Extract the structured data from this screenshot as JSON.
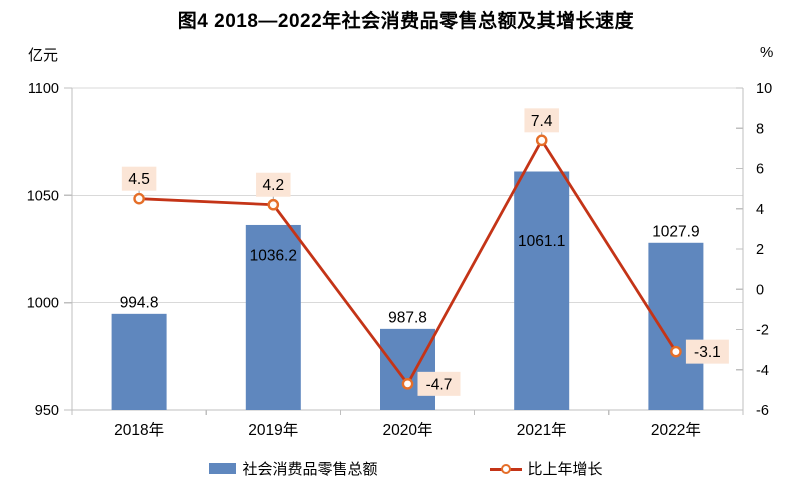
{
  "title": "图4  2018—2022年社会消费品零售总额及其增长速度",
  "left_axis_unit": "亿元",
  "right_axis_unit": "%",
  "legend": {
    "bar_label": "社会消费品零售总额",
    "line_label": "比上年增长"
  },
  "colors": {
    "bar": "#5f87be",
    "line": "#c43417",
    "marker_ring": "#e56e28",
    "marker_fill": "#fffcfa",
    "label_bg": "#fbe5d6",
    "axis": "#bfbfbf",
    "grid": "#d9d9d9",
    "leader": "#a6a6a6",
    "text": "#000000"
  },
  "chart_data": {
    "type": "combo",
    "title": "图4  2018—2022年社会消费品零售总额及其增长速度",
    "categories": [
      "2018年",
      "2019年",
      "2020年",
      "2021年",
      "2022年"
    ],
    "series": [
      {
        "name": "社会消费品零售总额",
        "type": "bar",
        "axis": "left",
        "values": [
          994.8,
          1036.2,
          987.8,
          1061.1,
          1027.9
        ],
        "value_labels": [
          "994.8",
          "1036.2",
          "987.8",
          "1061.1",
          "1027.9"
        ],
        "label_placement": [
          "above",
          "inside",
          "above",
          "inside",
          "above"
        ],
        "label_dy": [
          -12,
          30,
          -12,
          69,
          -12
        ]
      },
      {
        "name": "比上年增长",
        "type": "line",
        "axis": "right",
        "values": [
          4.5,
          4.2,
          -4.7,
          7.4,
          -3.1
        ],
        "value_labels": [
          "4.5",
          "4.2",
          "-4.7",
          "7.4",
          "-3.1"
        ],
        "label_placement": [
          "above",
          "above",
          "right",
          "above",
          "right"
        ]
      }
    ],
    "left_axis": {
      "unit": "亿元",
      "min": 950,
      "max": 1100,
      "step": 50,
      "tick_labels": [
        "950",
        "1000",
        "1050",
        "1100"
      ]
    },
    "right_axis": {
      "unit": "%",
      "min": -6,
      "max": 10,
      "step": 2,
      "tick_labels": [
        "-6",
        "-4",
        "-2",
        "0",
        "2",
        "4",
        "6",
        "8",
        "10"
      ]
    },
    "grid": true,
    "legend_position": "bottom"
  }
}
